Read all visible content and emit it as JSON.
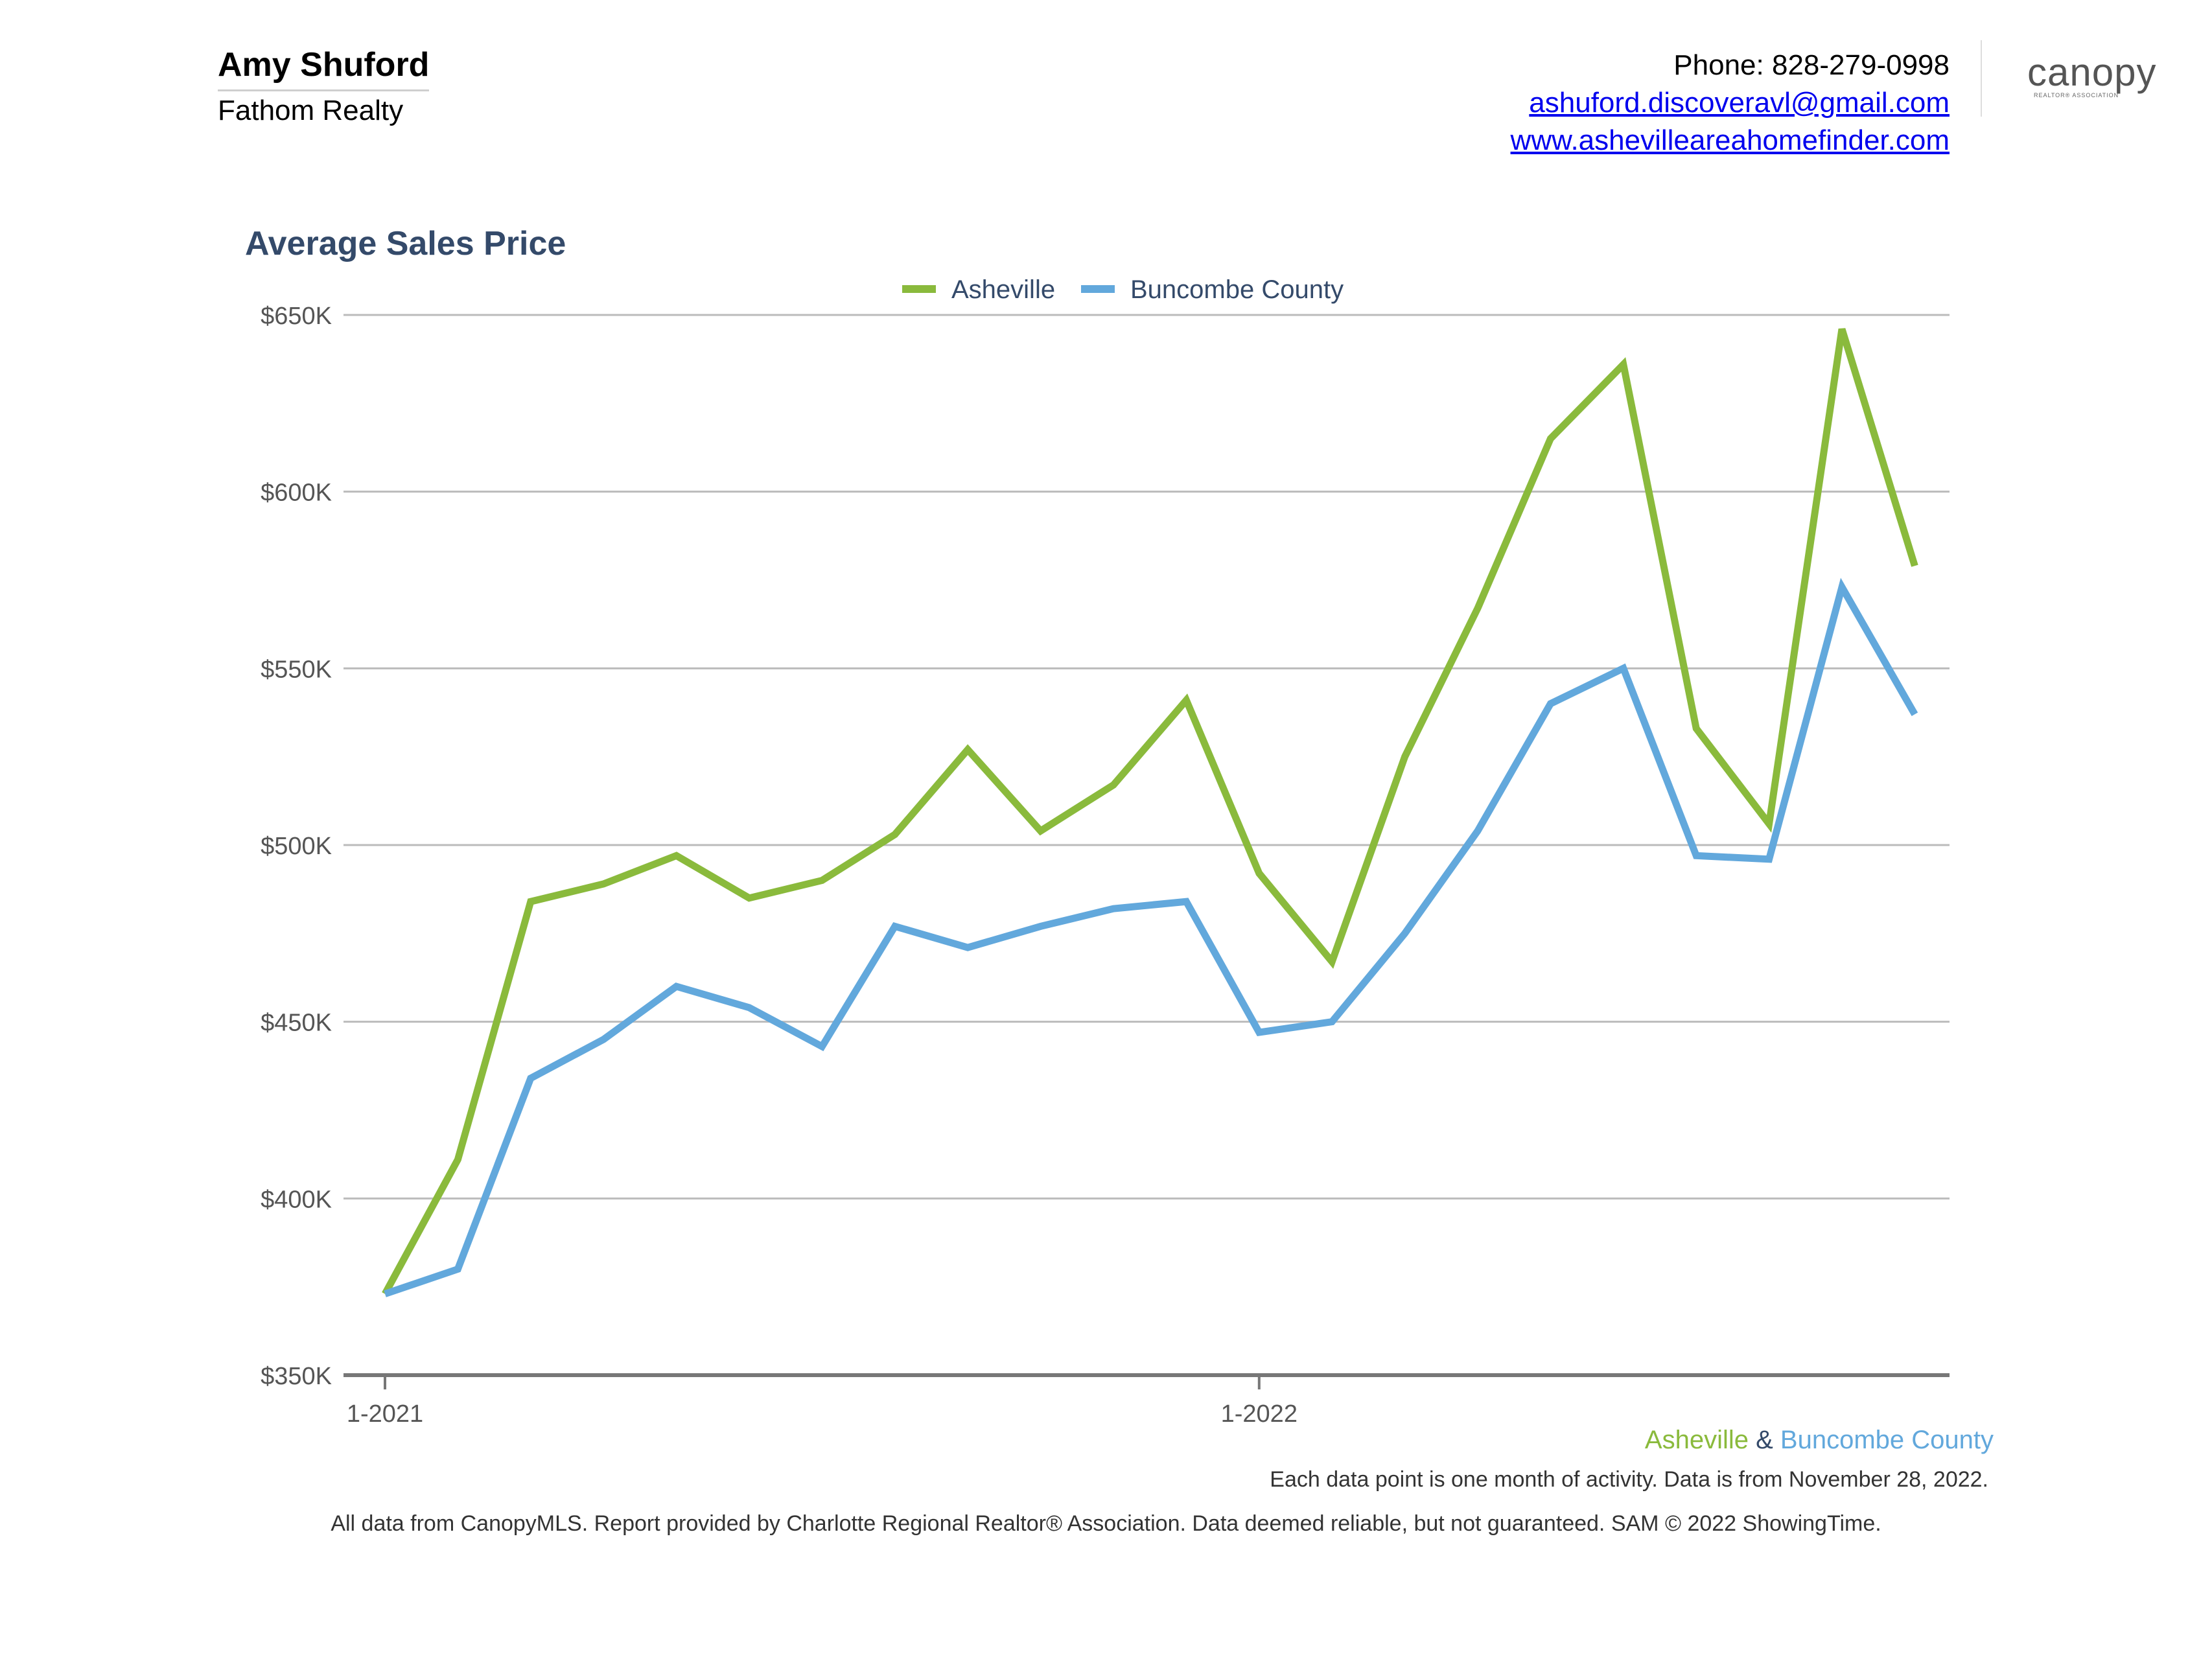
{
  "header": {
    "agent_name": "Amy Shuford",
    "company": "Fathom Realty",
    "phone": "Phone: 828-279-0998",
    "email": "ashuford.discoveravl@gmail.com",
    "website": "www.ashevilleareahomefinder.com",
    "logo_text": "canopy",
    "logo_subtext": "REALTOR® ASSOCIATION"
  },
  "colors": {
    "asheville": "#8aba3c",
    "buncombe": "#62a8dc",
    "title": "#344a6a",
    "grid": "#bbbbbb",
    "axis": "#777777"
  },
  "chart_data": {
    "type": "line",
    "title": "Average Sales Price",
    "xlabel": "",
    "ylabel": "",
    "x": [
      "1-2021",
      "2-2021",
      "3-2021",
      "4-2021",
      "5-2021",
      "6-2021",
      "7-2021",
      "8-2021",
      "9-2021",
      "10-2021",
      "11-2021",
      "12-2021",
      "1-2022",
      "2-2022",
      "3-2022",
      "4-2022",
      "5-2022",
      "6-2022",
      "7-2022",
      "8-2022",
      "9-2022",
      "10-2022"
    ],
    "x_tick_labels": [
      {
        "label": "1-2021",
        "index": 0
      },
      {
        "label": "1-2022",
        "index": 12
      }
    ],
    "ylim": [
      350000,
      650000
    ],
    "y_ticks": [
      350000,
      400000,
      450000,
      500000,
      550000,
      600000,
      650000
    ],
    "y_tick_labels": [
      "$350K",
      "$400K",
      "$450K",
      "$500K",
      "$550K",
      "$600K",
      "$650K"
    ],
    "grid": true,
    "legend_position": "top-center",
    "series": [
      {
        "name": "Asheville",
        "values": [
          373000,
          411000,
          484000,
          489000,
          497000,
          485000,
          490000,
          503000,
          527000,
          504000,
          517000,
          541000,
          492000,
          467000,
          525000,
          567000,
          615000,
          636000,
          533000,
          506000,
          646000,
          579000
        ]
      },
      {
        "name": "Buncombe County",
        "values": [
          373000,
          380000,
          434000,
          445000,
          460000,
          454000,
          443000,
          477000,
          471000,
          477000,
          482000,
          484000,
          447000,
          450000,
          475000,
          504000,
          540000,
          550000,
          497000,
          496000,
          573000,
          537000
        ]
      }
    ]
  },
  "footer": {
    "legend_a": "Asheville",
    "legend_amp": "&",
    "legend_b": "Buncombe County",
    "note": "Each data point is one month of activity. Data is from November 28, 2022.",
    "disclaimer": "All data from CanopyMLS. Report provided by Charlotte Regional Realtor® Association. Data deemed reliable, but not guaranteed. SAM © 2022 ShowingTime."
  }
}
